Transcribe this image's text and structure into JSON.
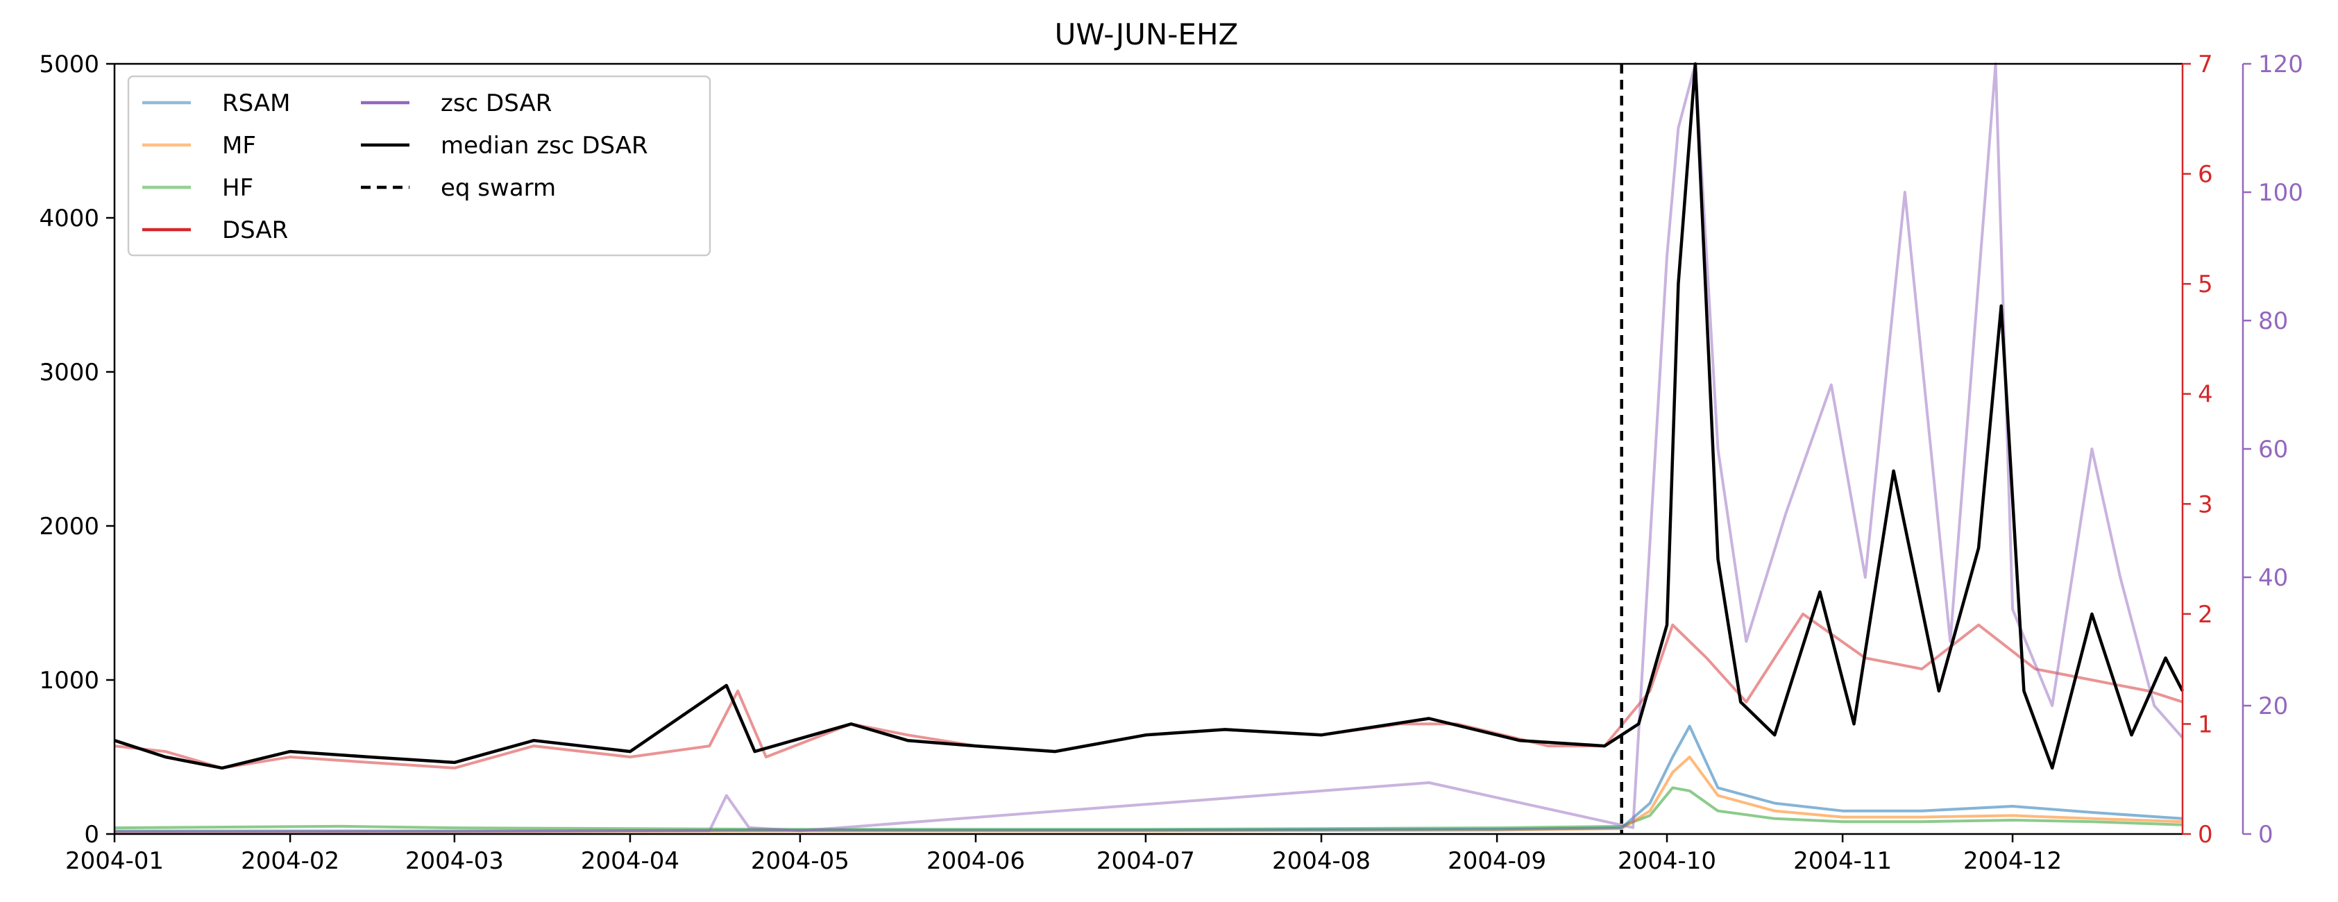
{
  "chart_data": {
    "type": "line",
    "title": "UW-JUN-EHZ",
    "xlim": [
      "2004-01-01",
      "2004-12-31"
    ],
    "x_ticks": [
      "2004-01",
      "2004-02",
      "2004-03",
      "2004-04",
      "2004-05",
      "2004-06",
      "2004-07",
      "2004-08",
      "2004-09",
      "2004-10",
      "2004-11",
      "2004-12"
    ],
    "axes": {
      "left": {
        "ylim": [
          0,
          5000
        ],
        "ticks": [
          "0",
          "1000",
          "2000",
          "3000",
          "4000",
          "5000"
        ],
        "color": "#000000"
      },
      "right_dsar": {
        "ylim": [
          0,
          7
        ],
        "ticks": [
          "0",
          "1",
          "2",
          "3",
          "4",
          "5",
          "6",
          "7"
        ],
        "color": "#d62728"
      },
      "right_zsc": {
        "ylim": [
          0,
          120
        ],
        "ticks": [
          "0",
          "20",
          "40",
          "60",
          "80",
          "100",
          "120"
        ],
        "color": "#9467bd"
      }
    },
    "legend": {
      "placement": "top-left",
      "entries": [
        {
          "label": "RSAM",
          "color": "#1f77b4",
          "style": "solid",
          "alpha": 0.5
        },
        {
          "label": "MF",
          "color": "#ff7f0e",
          "style": "solid",
          "alpha": 0.5
        },
        {
          "label": "HF",
          "color": "#2ca02c",
          "style": "solid",
          "alpha": 0.5
        },
        {
          "label": "DSAR",
          "color": "#d62728",
          "style": "solid",
          "alpha": 1
        },
        {
          "label": "zsc DSAR",
          "color": "#9467bd",
          "style": "solid",
          "alpha": 1
        },
        {
          "label": "median zsc DSAR",
          "color": "#000000",
          "style": "solid",
          "alpha": 1
        },
        {
          "label": "eq swarm",
          "color": "#000000",
          "style": "dashed",
          "alpha": 1
        }
      ]
    },
    "eq_swarm_date": "2004-09-23",
    "series": [
      {
        "name": "RSAM",
        "axis": "left",
        "color": "#1f77b4",
        "x": [
          "2004-01-01",
          "2004-03-01",
          "2004-05-01",
          "2004-07-01",
          "2004-09-01",
          "2004-09-23",
          "2004-09-28",
          "2004-10-02",
          "2004-10-05",
          "2004-10-10",
          "2004-10-20",
          "2004-11-01",
          "2004-11-15",
          "2004-12-01",
          "2004-12-15",
          "2004-12-31"
        ],
        "values": [
          20,
          20,
          25,
          25,
          30,
          40,
          200,
          500,
          700,
          300,
          200,
          150,
          150,
          180,
          140,
          100
        ]
      },
      {
        "name": "MF",
        "axis": "left",
        "color": "#ff7f0e",
        "x": [
          "2004-01-01",
          "2004-03-01",
          "2004-05-01",
          "2004-07-01",
          "2004-09-01",
          "2004-09-23",
          "2004-09-28",
          "2004-10-02",
          "2004-10-05",
          "2004-10-10",
          "2004-10-20",
          "2004-11-01",
          "2004-11-15",
          "2004-12-01",
          "2004-12-15",
          "2004-12-31"
        ],
        "values": [
          15,
          15,
          20,
          20,
          25,
          35,
          150,
          400,
          500,
          250,
          150,
          110,
          110,
          120,
          100,
          80
        ]
      },
      {
        "name": "HF",
        "axis": "left",
        "color": "#2ca02c",
        "x": [
          "2004-01-01",
          "2004-02-10",
          "2004-03-01",
          "2004-05-01",
          "2004-07-01",
          "2004-09-01",
          "2004-09-23",
          "2004-09-28",
          "2004-10-02",
          "2004-10-05",
          "2004-10-10",
          "2004-10-20",
          "2004-11-01",
          "2004-11-15",
          "2004-12-01",
          "2004-12-15",
          "2004-12-31"
        ],
        "values": [
          40,
          50,
          40,
          30,
          30,
          40,
          50,
          120,
          300,
          280,
          150,
          100,
          80,
          80,
          90,
          80,
          60
        ]
      },
      {
        "name": "DSAR",
        "axis": "right_dsar",
        "color": "#d62728",
        "x": [
          "2004-01-01",
          "2004-01-10",
          "2004-01-20",
          "2004-02-01",
          "2004-02-15",
          "2004-03-01",
          "2004-03-15",
          "2004-04-01",
          "2004-04-15",
          "2004-04-20",
          "2004-04-25",
          "2004-05-10",
          "2004-05-20",
          "2004-06-01",
          "2004-06-15",
          "2004-07-01",
          "2004-07-15",
          "2004-08-01",
          "2004-08-15",
          "2004-08-25",
          "2004-09-10",
          "2004-09-20",
          "2004-09-28",
          "2004-10-02",
          "2004-10-08",
          "2004-10-15",
          "2004-10-25",
          "2004-11-05",
          "2004-11-15",
          "2004-11-25",
          "2004-12-05",
          "2004-12-15",
          "2004-12-25",
          "2004-12-31"
        ],
        "values": [
          0.8,
          0.75,
          0.6,
          0.7,
          0.65,
          0.6,
          0.8,
          0.7,
          0.8,
          1.3,
          0.7,
          1.0,
          0.9,
          0.8,
          0.75,
          0.9,
          0.95,
          0.9,
          1.0,
          1.0,
          0.8,
          0.8,
          1.3,
          1.9,
          1.6,
          1.2,
          2.0,
          1.6,
          1.5,
          1.9,
          1.5,
          1.4,
          1.3,
          1.2
        ]
      },
      {
        "name": "zsc DSAR",
        "axis": "right_zsc",
        "color": "#9467bd",
        "x": [
          "2004-01-01",
          "2004-04-15",
          "2004-04-18",
          "2004-04-22",
          "2004-05-01",
          "2004-08-20",
          "2004-09-25",
          "2004-10-01",
          "2004-10-03",
          "2004-10-06",
          "2004-10-10",
          "2004-10-15",
          "2004-10-22",
          "2004-10-30",
          "2004-11-05",
          "2004-11-12",
          "2004-11-20",
          "2004-11-28",
          "2004-12-01",
          "2004-12-08",
          "2004-12-15",
          "2004-12-20",
          "2004-12-26",
          "2004-12-31"
        ],
        "values": [
          0.3,
          0.5,
          6,
          1,
          0.5,
          8,
          1,
          90,
          110,
          120,
          60,
          30,
          50,
          70,
          40,
          100,
          30,
          120,
          35,
          20,
          60,
          40,
          20,
          15
        ]
      },
      {
        "name": "median zsc DSAR",
        "axis": "right_dsar",
        "color": "#000000",
        "x": [
          "2004-01-01",
          "2004-01-10",
          "2004-01-20",
          "2004-02-01",
          "2004-02-15",
          "2004-03-01",
          "2004-03-15",
          "2004-04-01",
          "2004-04-18",
          "2004-04-23",
          "2004-05-10",
          "2004-05-20",
          "2004-06-01",
          "2004-06-15",
          "2004-07-01",
          "2004-07-15",
          "2004-08-01",
          "2004-08-20",
          "2004-09-05",
          "2004-09-20",
          "2004-09-26",
          "2004-10-01",
          "2004-10-03",
          "2004-10-06",
          "2004-10-10",
          "2004-10-14",
          "2004-10-20",
          "2004-10-28",
          "2004-11-03",
          "2004-11-10",
          "2004-11-18",
          "2004-11-25",
          "2004-11-29",
          "2004-12-03",
          "2004-12-08",
          "2004-12-15",
          "2004-12-22",
          "2004-12-28",
          "2004-12-31"
        ],
        "values": [
          0.85,
          0.7,
          0.6,
          0.75,
          0.7,
          0.65,
          0.85,
          0.75,
          1.35,
          0.75,
          1.0,
          0.85,
          0.8,
          0.75,
          0.9,
          0.95,
          0.9,
          1.05,
          0.85,
          0.8,
          1.0,
          1.9,
          5.0,
          7.0,
          2.5,
          1.2,
          0.9,
          2.2,
          1.0,
          3.3,
          1.3,
          2.6,
          4.8,
          1.3,
          0.6,
          2.0,
          0.9,
          1.6,
          1.3
        ]
      }
    ]
  }
}
